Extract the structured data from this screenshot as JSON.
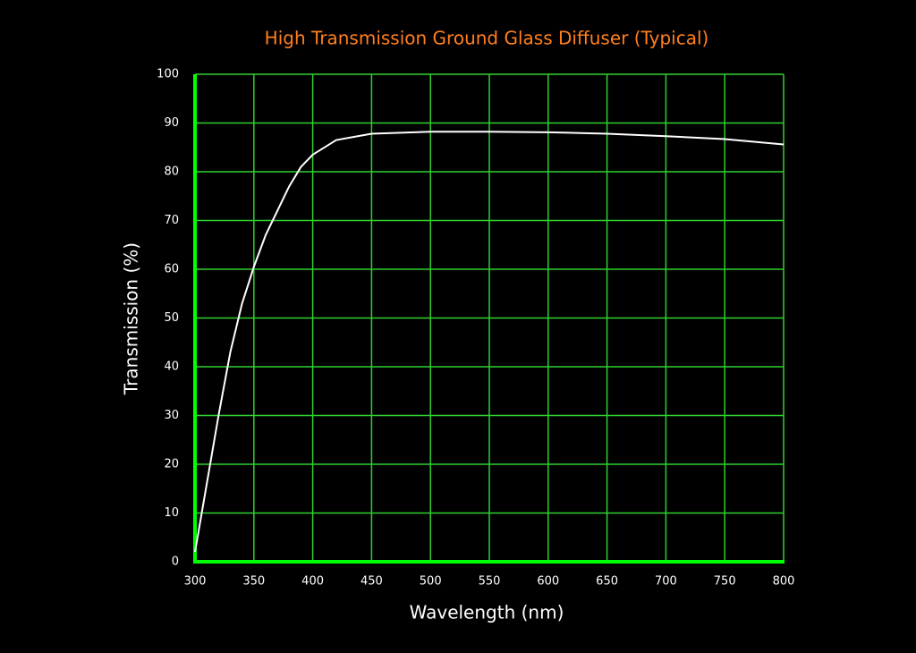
{
  "chart_data": {
    "type": "line",
    "title": "High Transmission Ground Glass Diffuser (Typical)",
    "x_label": "Wavelength (nm)",
    "y_label": "Transmission (%)",
    "x": [
      300,
      310,
      320,
      330,
      340,
      350,
      360,
      370,
      380,
      390,
      400,
      420,
      450,
      500,
      550,
      600,
      650,
      700,
      750,
      800
    ],
    "series": [
      {
        "color": "#ffffff",
        "values": [
          2,
          16,
          30,
          43,
          53,
          60.5,
          67,
          72,
          77,
          81,
          83.5,
          86.5,
          87.8,
          88.2,
          88.2,
          88.1,
          87.8,
          87.3,
          86.7,
          85.6
        ]
      }
    ],
    "xlim": [
      300,
      800
    ],
    "xticks": [
      300,
      350,
      400,
      450,
      500,
      550,
      600,
      650,
      700,
      750,
      800
    ],
    "ylim": [
      0,
      100
    ],
    "yticks": [
      0,
      10,
      20,
      30,
      40,
      50,
      60,
      70,
      80,
      90,
      100
    ],
    "grid": true,
    "grid_color": "#2fd12f",
    "axis_color": "#00ff00",
    "title_color": "#ff7f1e"
  }
}
